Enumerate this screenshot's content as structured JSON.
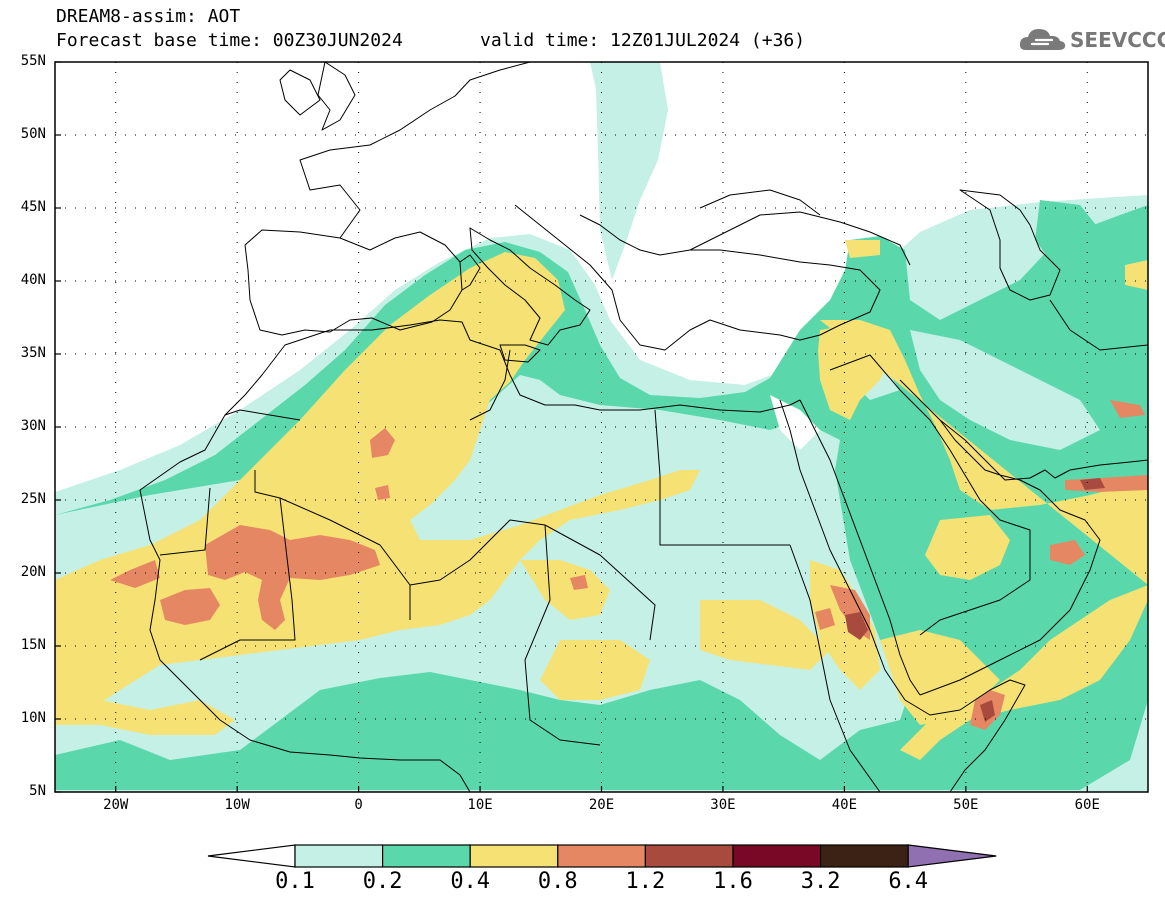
{
  "header": {
    "model_line": "DREAM8-assim: AOT",
    "base_time": "Forecast base time: 00Z30JUN2024",
    "valid_time": "valid time: 12Z01JUL2024 (+36)",
    "logo_text": "SEEVCCC",
    "logo_icon": "cloud-icon"
  },
  "map": {
    "lon_range": [
      -25,
      65
    ],
    "lat_range": [
      5,
      55
    ],
    "lat_labels": [
      "55N",
      "50N",
      "45N",
      "40N",
      "35N",
      "30N",
      "25N",
      "20N",
      "15N",
      "10N",
      "5N"
    ],
    "lon_labels": [
      "20W",
      "10W",
      "0",
      "10E",
      "20E",
      "30E",
      "40E",
      "50E",
      "60E"
    ]
  },
  "colorbar": {
    "levels": [
      "0.1",
      "0.2",
      "0.4",
      "0.8",
      "1.2",
      "1.6",
      "3.2",
      "6.4"
    ],
    "colors": [
      "#c4f0e6",
      "#5ad8ac",
      "#f6e274",
      "#e68764",
      "#a84a3e",
      "#780826",
      "#3c2214",
      "#9070b0"
    ]
  }
}
